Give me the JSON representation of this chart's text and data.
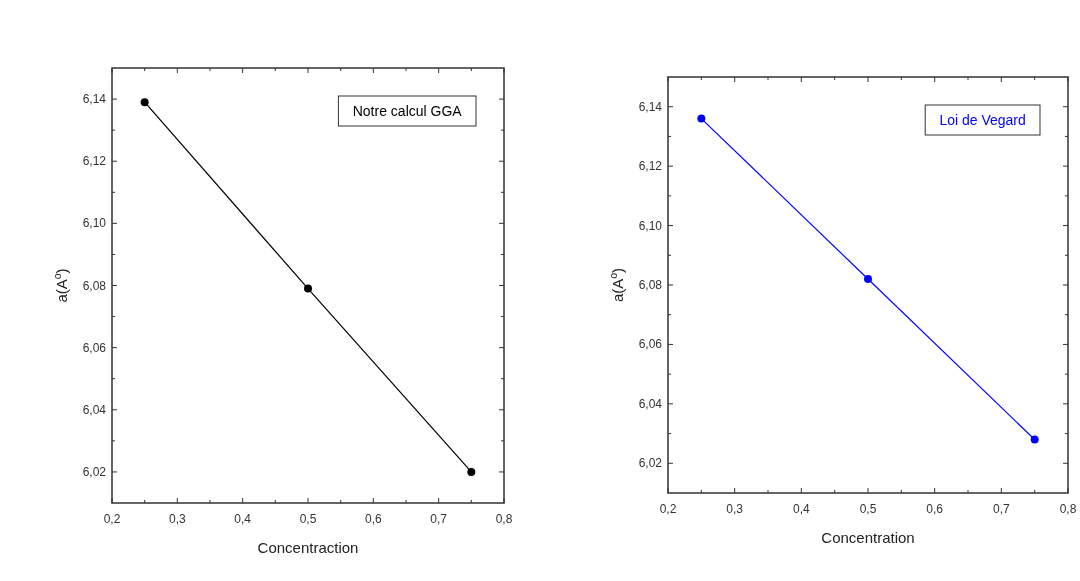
{
  "chart_data": [
    {
      "type": "line",
      "xlabel": "Concentraction",
      "ylabel": "a(A$^{o}$)",
      "x": [
        0.25,
        0.5,
        0.75
      ],
      "series": [
        {
          "name": "Notre calcul GGA",
          "color": "#000000",
          "values": [
            6.139,
            6.079,
            6.02
          ]
        }
      ],
      "xlim": [
        0.2,
        0.8
      ],
      "xticks": [
        {
          "value": 0.2,
          "label": "0,2"
        },
        {
          "value": 0.25,
          "label": null
        },
        {
          "value": 0.3,
          "label": "0,3"
        },
        {
          "value": 0.35,
          "label": null
        },
        {
          "value": 0.4,
          "label": "0,4"
        },
        {
          "value": 0.45,
          "label": null
        },
        {
          "value": 0.5,
          "label": "0,5"
        },
        {
          "value": 0.55,
          "label": null
        },
        {
          "value": 0.6,
          "label": "0,6"
        },
        {
          "value": 0.65,
          "label": null
        },
        {
          "value": 0.7,
          "label": "0,7"
        },
        {
          "value": 0.75,
          "label": null
        },
        {
          "value": 0.8,
          "label": "0,8"
        }
      ],
      "ylim": [
        6.01,
        6.15
      ],
      "yticks": [
        {
          "value": 6.02,
          "label": "6,02"
        },
        {
          "value": 6.03,
          "label": null
        },
        {
          "value": 6.04,
          "label": "6,04"
        },
        {
          "value": 6.05,
          "label": null
        },
        {
          "value": 6.06,
          "label": "6,06"
        },
        {
          "value": 6.07,
          "label": null
        },
        {
          "value": 6.08,
          "label": "6,08"
        },
        {
          "value": 6.09,
          "label": null
        },
        {
          "value": 6.1,
          "label": "6,10"
        },
        {
          "value": 6.11,
          "label": null
        },
        {
          "value": 6.12,
          "label": "6,12"
        },
        {
          "value": 6.13,
          "label": null
        },
        {
          "value": 6.14,
          "label": "6,14"
        }
      ],
      "marker": "circle",
      "line_style": "solid",
      "legend": "top right",
      "grid": false
    },
    {
      "type": "line",
      "xlabel": "Concentration",
      "ylabel": "a(A$^{o}$)",
      "x": [
        0.25,
        0.5,
        0.75
      ],
      "series": [
        {
          "name": "Loi de Vegard",
          "color": "#0000ff",
          "values": [
            6.136,
            6.082,
            6.028
          ]
        }
      ],
      "xlim": [
        0.2,
        0.8
      ],
      "xticks": [
        {
          "value": 0.2,
          "label": "0,2"
        },
        {
          "value": 0.25,
          "label": null
        },
        {
          "value": 0.3,
          "label": "0,3"
        },
        {
          "value": 0.35,
          "label": null
        },
        {
          "value": 0.4,
          "label": "0,4"
        },
        {
          "value": 0.45,
          "label": null
        },
        {
          "value": 0.5,
          "label": "0,5"
        },
        {
          "value": 0.55,
          "label": null
        },
        {
          "value": 0.6,
          "label": "0,6"
        },
        {
          "value": 0.65,
          "label": null
        },
        {
          "value": 0.7,
          "label": "0,7"
        },
        {
          "value": 0.75,
          "label": null
        },
        {
          "value": 0.8,
          "label": "0,8"
        }
      ],
      "ylim": [
        6.01,
        6.15
      ],
      "yticks": [
        {
          "value": 6.02,
          "label": "6,02"
        },
        {
          "value": 6.03,
          "label": null
        },
        {
          "value": 6.04,
          "label": "6,04"
        },
        {
          "value": 6.05,
          "label": null
        },
        {
          "value": 6.06,
          "label": "6,06"
        },
        {
          "value": 6.07,
          "label": null
        },
        {
          "value": 6.08,
          "label": "6,08"
        },
        {
          "value": 6.09,
          "label": null
        },
        {
          "value": 6.1,
          "label": "6,10"
        },
        {
          "value": 6.11,
          "label": null
        },
        {
          "value": 6.12,
          "label": "6,12"
        },
        {
          "value": 6.13,
          "label": null
        },
        {
          "value": 6.14,
          "label": "6,14"
        }
      ],
      "marker": "circle",
      "line_style": "solid",
      "legend": "top right",
      "grid": false
    }
  ]
}
